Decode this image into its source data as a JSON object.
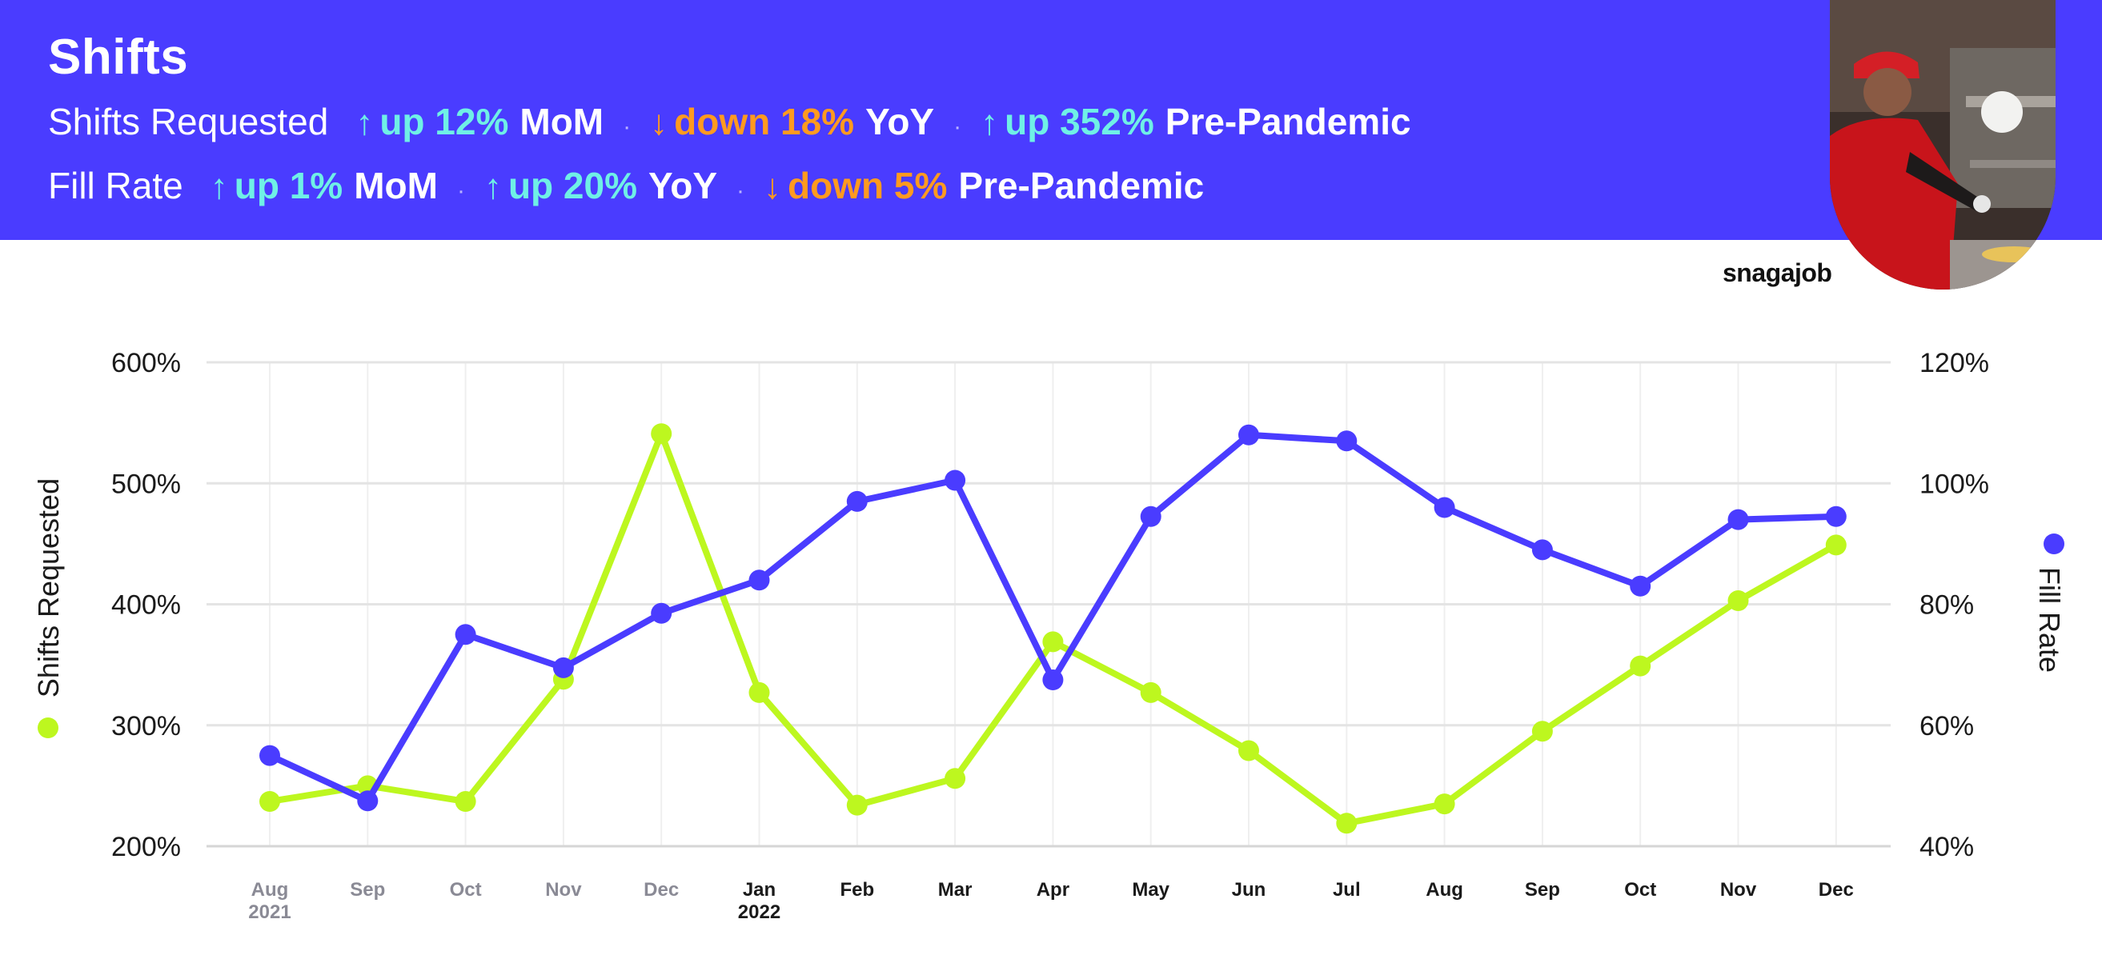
{
  "header": {
    "title": "Shifts",
    "rows": [
      {
        "label": "Shifts Requested",
        "stats": [
          {
            "dir": "up",
            "arrow": "↑",
            "text": "up 12%",
            "period": "MoM"
          },
          {
            "dir": "down",
            "arrow": "↓",
            "text": "down 18%",
            "period": "YoY"
          },
          {
            "dir": "up",
            "arrow": "↑",
            "text": "up 352%",
            "period": "Pre-Pandemic"
          }
        ]
      },
      {
        "label": "Fill Rate",
        "stats": [
          {
            "dir": "up",
            "arrow": "↑",
            "text": "up 1%",
            "period": "MoM"
          },
          {
            "dir": "up",
            "arrow": "↑",
            "text": "up 20%",
            "period": "YoY"
          },
          {
            "dir": "down",
            "arrow": "↓",
            "text": "down 5%",
            "period": "Pre-Pandemic"
          }
        ]
      }
    ],
    "separator": "·",
    "brand": "snagajob"
  },
  "colors": {
    "header_bg": "#4a3cff",
    "up": "#6ff0e6",
    "down": "#ff9a1f",
    "fill_rate": "#4a3cff",
    "shifts_requested": "#bdf71f",
    "grid": "#e4e4e4",
    "muted_tick": "#8a8a95"
  },
  "chart_data": {
    "type": "line",
    "x": [
      "Aug",
      "Sep",
      "Oct",
      "Nov",
      "Dec",
      "Jan",
      "Feb",
      "Mar",
      "Apr",
      "May",
      "Jun",
      "Jul",
      "Aug",
      "Sep",
      "Oct",
      "Nov",
      "Dec"
    ],
    "x_sublabels": {
      "0": "2021",
      "5": "2022"
    },
    "series": [
      {
        "name": "Shifts Requested",
        "axis": "left",
        "color": "#bdf71f",
        "values": [
          237,
          250,
          237,
          338,
          541,
          327,
          234,
          256,
          369,
          327,
          279,
          219,
          235,
          295,
          349,
          403,
          449
        ]
      },
      {
        "name": "Fill Rate",
        "axis": "right",
        "color": "#4a3cff",
        "values": [
          55,
          47.5,
          75,
          69.5,
          78.5,
          84,
          97,
          100.5,
          67.5,
          94.5,
          108,
          107,
          96,
          89,
          83,
          94,
          94.5
        ]
      }
    ],
    "ylabel": "Shifts Requested",
    "ylim": [
      200,
      600
    ],
    "yticks": [
      "200%",
      "300%",
      "400%",
      "500%",
      "600%"
    ],
    "y2label": "Fill Rate",
    "y2lim": [
      40,
      120
    ],
    "y2ticks": [
      "40%",
      "60%",
      "80%",
      "100%",
      "120%"
    ],
    "grid": true
  }
}
